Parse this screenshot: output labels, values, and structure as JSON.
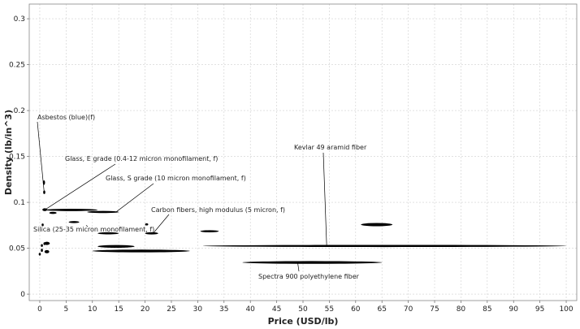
{
  "chart_data": {
    "type": "scatter",
    "xlabel": "Price (USD/lb)",
    "ylabel": "Density (lb/in^3)",
    "xlim": [
      -2,
      102
    ],
    "ylim": [
      -0.007,
      0.316
    ],
    "x_ticks": [
      0,
      5,
      10,
      15,
      20,
      25,
      30,
      35,
      40,
      45,
      50,
      55,
      60,
      65,
      70,
      75,
      80,
      85,
      90,
      95,
      100
    ],
    "y_ticks": [
      0,
      0.05,
      0.1,
      0.15,
      0.2,
      0.25,
      0.3
    ],
    "y_tick_labels": [
      "0",
      "0.05",
      "0.1",
      "0.15",
      "0.2",
      "0.25",
      "0.3"
    ],
    "grid": true,
    "point_color": "#000000",
    "bubbles": [
      {
        "x_min": 0.6,
        "x_max": 1.0,
        "y_min": 0.119,
        "y_max": 0.124
      },
      {
        "x_min": 0.7,
        "x_max": 1.0,
        "y_min": 0.109,
        "y_max": 0.113
      },
      {
        "x_min": 0.5,
        "x_max": 1.4,
        "y_min": 0.0905,
        "y_max": 0.0935
      },
      {
        "x_min": 1.0,
        "x_max": 11.0,
        "y_min": 0.0905,
        "y_max": 0.093
      },
      {
        "x_min": 1.8,
        "x_max": 3.2,
        "y_min": 0.0875,
        "y_max": 0.0895
      },
      {
        "x_min": 9.0,
        "x_max": 15.0,
        "y_min": 0.0885,
        "y_max": 0.0905
      },
      {
        "x_min": 5.5,
        "x_max": 7.5,
        "y_min": 0.0775,
        "y_max": 0.0795
      },
      {
        "x_min": 0.4,
        "x_max": 0.7,
        "y_min": 0.074,
        "y_max": 0.077
      },
      {
        "x_min": 20.0,
        "x_max": 20.6,
        "y_min": 0.075,
        "y_max": 0.077
      },
      {
        "x_min": 30.5,
        "x_max": 34.0,
        "y_min": 0.0675,
        "y_max": 0.0695
      },
      {
        "x_min": 20.0,
        "x_max": 22.5,
        "y_min": 0.065,
        "y_max": 0.0675
      },
      {
        "x_min": 11.0,
        "x_max": 15.0,
        "y_min": 0.0655,
        "y_max": 0.067
      },
      {
        "x_min": 61.0,
        "x_max": 67.0,
        "y_min": 0.074,
        "y_max": 0.0775
      },
      {
        "x_min": 11.0,
        "x_max": 18.0,
        "y_min": 0.0505,
        "y_max": 0.0535
      },
      {
        "x_min": 10.0,
        "x_max": 28.5,
        "y_min": 0.0455,
        "y_max": 0.0485
      },
      {
        "x_min": 31.0,
        "x_max": 100.0,
        "y_min": 0.0515,
        "y_max": 0.0535
      },
      {
        "x_min": 38.5,
        "x_max": 65.0,
        "y_min": 0.033,
        "y_max": 0.036
      },
      {
        "x_min": 0.2,
        "x_max": 0.6,
        "y_min": 0.0515,
        "y_max": 0.0545
      },
      {
        "x_min": 0.2,
        "x_max": 0.6,
        "y_min": 0.046,
        "y_max": 0.0495
      },
      {
        "x_min": -0.2,
        "x_max": 0.2,
        "y_min": 0.042,
        "y_max": 0.045
      },
      {
        "x_min": 0.7,
        "x_max": 1.1,
        "y_min": 0.0535,
        "y_max": 0.0565
      },
      {
        "x_min": 0.8,
        "x_max": 1.9,
        "y_min": 0.0535,
        "y_max": 0.057
      },
      {
        "x_min": 0.9,
        "x_max": 1.8,
        "y_min": 0.0445,
        "y_max": 0.048
      }
    ],
    "annotations": [
      {
        "text": "Asbestos (blue)(f)",
        "point": [
          0.8,
          0.113
        ]
      },
      {
        "text": "Glass, E grade (0.4-12 micron monofilament, f)",
        "point": [
          1.0,
          0.092
        ]
      },
      {
        "text": "Glass, S grade (10 micron monofilament, f)",
        "point": [
          14.5,
          0.0895
        ]
      },
      {
        "text": "Carbon fibers, high modulus (5 micron, f)",
        "point": [
          21.5,
          0.066
        ]
      },
      {
        "text": "Silica (25-35 micron monofilament, f)",
        "point": [
          8.8,
          0.075
        ]
      },
      {
        "text": "Kevlar 49 aramid fiber",
        "point": [
          54.5,
          0.0525
        ]
      },
      {
        "text": "Spectra 900 polyethylene fiber",
        "point": [
          49.0,
          0.034
        ]
      }
    ]
  }
}
